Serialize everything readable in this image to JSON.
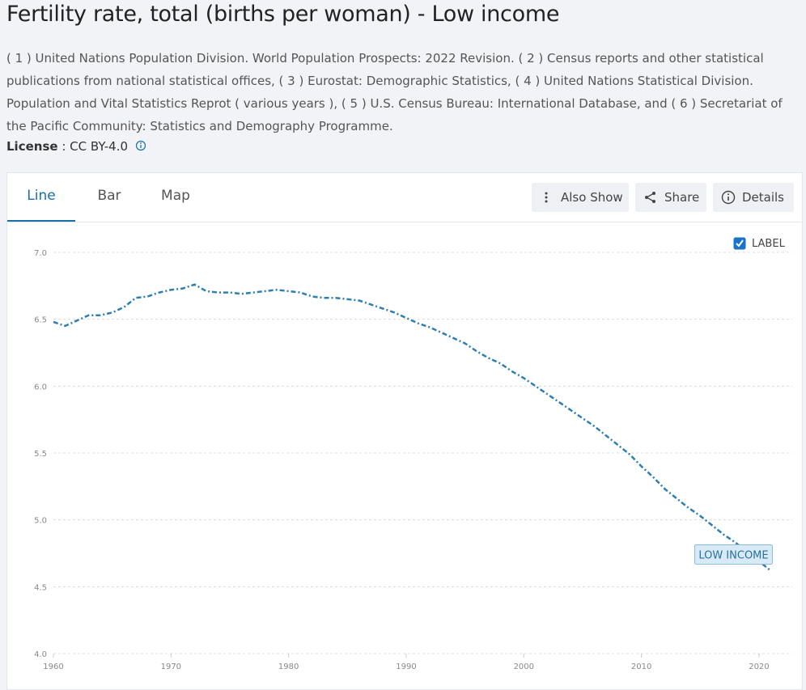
{
  "header": {
    "title": "Fertility rate, total (births per woman) - Low income",
    "sources": "( 1 ) United Nations Population Division. World Population Prospects: 2022 Revision. ( 2 ) Census reports and other statistical publications from national statistical offices, ( 3 ) Eurostat: Demographic Statistics, ( 4 ) United Nations Statistical Division. Population and Vital Statistics Reprot ( various years ), ( 5 ) U.S. Census Bureau: International Database, and ( 6 ) Secretariat of the Pacific Community: Statistics and Demography Programme.",
    "license_label": "License",
    "license_separator": ":",
    "license_value": "CC BY-4.0"
  },
  "tabs": [
    "Line",
    "Bar",
    "Map"
  ],
  "active_tab": 0,
  "actions": [
    "Also Show",
    "Share",
    "Details"
  ],
  "chart_data": {
    "type": "line",
    "label_toggle_text": "LABEL",
    "show_labels": true,
    "x": [
      1960,
      1961,
      1962,
      1963,
      1964,
      1965,
      1966,
      1967,
      1968,
      1969,
      1970,
      1971,
      1972,
      1973,
      1974,
      1975,
      1976,
      1977,
      1978,
      1979,
      1980,
      1981,
      1982,
      1983,
      1984,
      1985,
      1986,
      1987,
      1988,
      1989,
      1990,
      1991,
      1992,
      1993,
      1994,
      1995,
      1996,
      1997,
      1998,
      1999,
      2000,
      2001,
      2002,
      2003,
      2004,
      2005,
      2006,
      2007,
      2008,
      2009,
      2010,
      2011,
      2012,
      2013,
      2014,
      2015,
      2016,
      2017,
      2018,
      2019,
      2020,
      2021
    ],
    "series": [
      {
        "name": "LOW INCOME",
        "color": "#2e7fb0",
        "values": [
          6.48,
          6.45,
          6.49,
          6.53,
          6.53,
          6.55,
          6.59,
          6.66,
          6.67,
          6.7,
          6.72,
          6.73,
          6.76,
          6.71,
          6.7,
          6.7,
          6.69,
          6.7,
          6.71,
          6.72,
          6.71,
          6.7,
          6.67,
          6.66,
          6.66,
          6.65,
          6.64,
          6.61,
          6.58,
          6.55,
          6.51,
          6.47,
          6.44,
          6.4,
          6.36,
          6.32,
          6.26,
          6.21,
          6.17,
          6.11,
          6.06,
          6.0,
          5.94,
          5.88,
          5.82,
          5.76,
          5.7,
          5.63,
          5.56,
          5.49,
          5.4,
          5.32,
          5.23,
          5.16,
          5.09,
          5.03,
          4.96,
          4.89,
          4.83,
          4.76,
          4.69,
          4.62
        ]
      }
    ],
    "xlim": [
      1960,
      2022
    ],
    "xticks": [
      1960,
      1970,
      1980,
      1990,
      2000,
      2010,
      2020
    ],
    "ylim": [
      4.0,
      7.0
    ],
    "yticks": [
      {
        "value": 4,
        "label": "4.0"
      },
      {
        "value": 4.5,
        "label": "4.5"
      },
      {
        "value": 5,
        "label": "5.0"
      },
      {
        "value": 5.5,
        "label": "5.5"
      },
      {
        "value": 6,
        "label": "6.0"
      },
      {
        "value": 6.5,
        "label": "6.5"
      },
      {
        "value": 7,
        "label": "7.0"
      }
    ],
    "grid": true
  }
}
